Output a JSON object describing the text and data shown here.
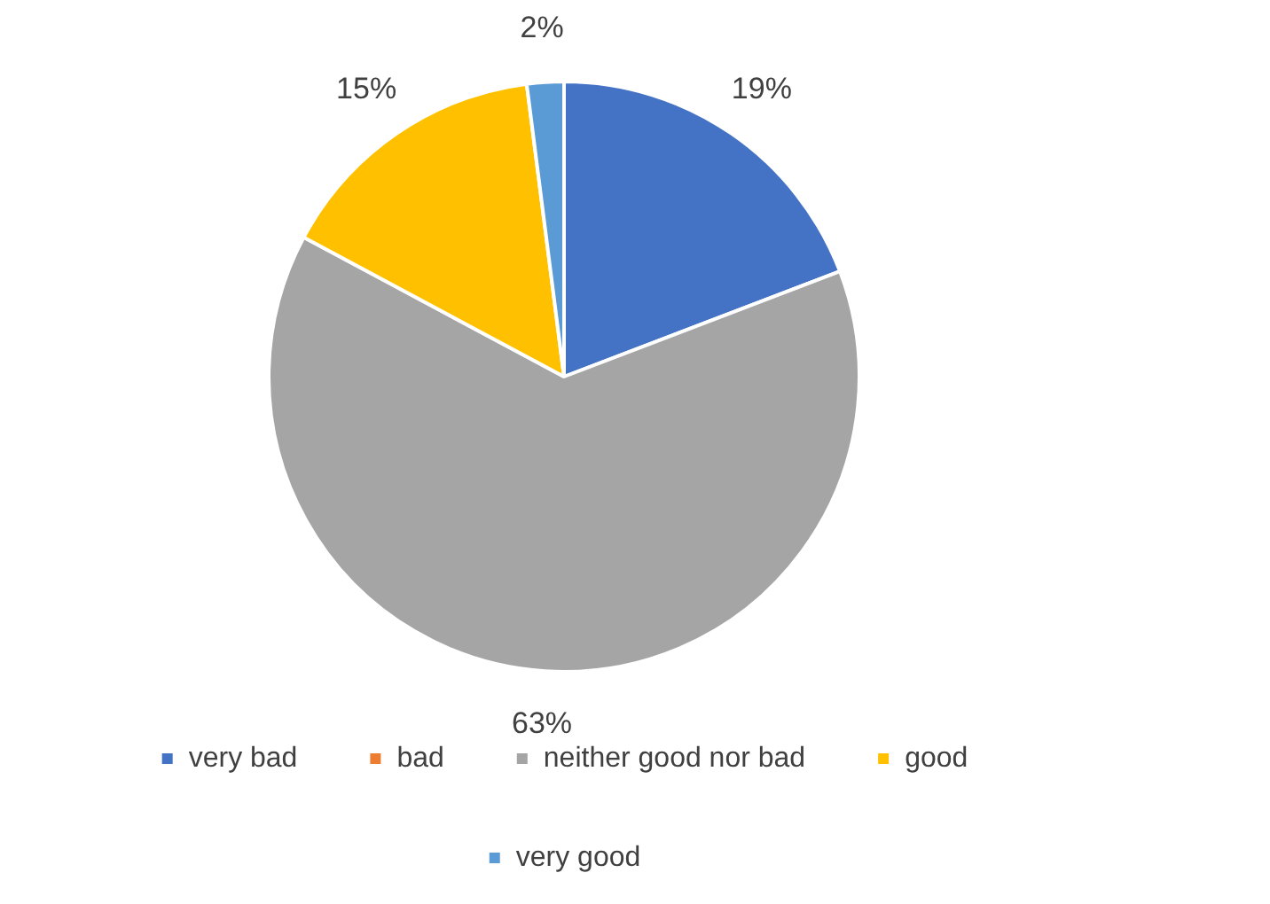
{
  "chart_data": {
    "type": "pie",
    "categories": [
      "very bad",
      "bad",
      "neither good nor bad",
      "good",
      "very good"
    ],
    "values": [
      19,
      0,
      63,
      15,
      2
    ],
    "colors": [
      "#4472c4",
      "#ed7d31",
      "#a5a5a5",
      "#ffc000",
      "#5b9bd5"
    ],
    "value_labels": [
      "19%",
      null,
      "63%",
      "15%",
      "2%"
    ],
    "legend": "bottom"
  }
}
